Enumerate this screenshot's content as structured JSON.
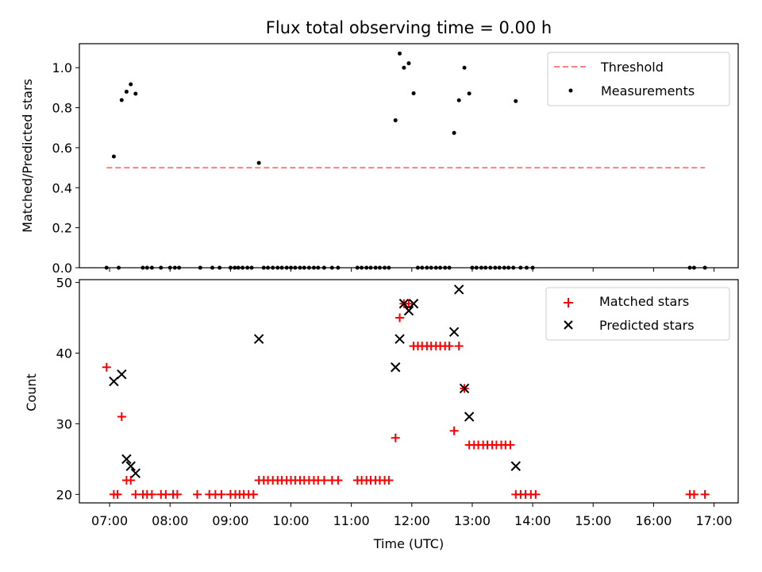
{
  "chart_data": [
    {
      "type": "scatter",
      "title": "Flux total observing time = 0.00 h",
      "xlabel": "",
      "ylabel": "Matched/Predicted stars",
      "xlim": [
        6.5,
        17.4
      ],
      "ylim": [
        0.0,
        1.12
      ],
      "yticks": [
        0.0,
        0.2,
        0.4,
        0.6,
        0.8,
        1.0
      ],
      "yticklabels": [
        "0.0",
        "0.2",
        "0.4",
        "0.6",
        "0.8",
        "1.0"
      ],
      "threshold": {
        "name": "Threshold",
        "value": 0.5,
        "x_start": 6.95,
        "x_end": 16.85,
        "color": "#ff7f7f"
      },
      "legend": [
        "Threshold",
        "Measurements"
      ],
      "legend_position": "top-right",
      "series": [
        {
          "name": "Measurements",
          "color": "#000000",
          "x": [
            6.95,
            7.07,
            7.2,
            7.28,
            7.35,
            7.43,
            9.47,
            11.73,
            11.8,
            11.87,
            11.95,
            12.03,
            12.7,
            12.78,
            12.87,
            12.95,
            13.72,
            7.15,
            7.55,
            7.62,
            7.7,
            7.85,
            8.0,
            8.08,
            8.15,
            8.5,
            8.7,
            8.82,
            9.0,
            9.07,
            9.13,
            9.2,
            9.28,
            9.35,
            9.55,
            9.62,
            9.7,
            9.78,
            9.85,
            9.93,
            10.0,
            10.07,
            10.15,
            10.22,
            10.3,
            10.38,
            10.45,
            10.55,
            10.68,
            10.78,
            11.1,
            11.17,
            11.25,
            11.32,
            11.4,
            11.47,
            11.55,
            11.62,
            12.1,
            12.17,
            12.25,
            12.32,
            12.4,
            12.47,
            12.55,
            12.62,
            13.0,
            13.07,
            13.15,
            13.22,
            13.3,
            13.38,
            13.45,
            13.53,
            13.6,
            13.68,
            13.8,
            13.9,
            14.0,
            16.6,
            16.67,
            16.85
          ],
          "y": [
            0.0,
            0.556,
            0.838,
            0.88,
            0.917,
            0.87,
            0.524,
            0.737,
            1.071,
            1.0,
            1.022,
            0.872,
            0.674,
            0.837,
            1.0,
            0.871,
            0.833,
            0,
            0,
            0,
            0,
            0,
            0,
            0,
            0,
            0,
            0,
            0,
            0,
            0,
            0,
            0,
            0,
            0,
            0,
            0,
            0,
            0,
            0,
            0,
            0,
            0,
            0,
            0,
            0,
            0,
            0,
            0,
            0,
            0,
            0,
            0,
            0,
            0,
            0,
            0,
            0,
            0,
            0,
            0,
            0,
            0,
            0,
            0,
            0,
            0,
            0,
            0,
            0,
            0,
            0,
            0,
            0,
            0,
            0,
            0,
            0,
            0,
            0,
            0,
            0,
            0
          ]
        }
      ]
    },
    {
      "type": "scatter",
      "title": "",
      "xlabel": "Time (UTC)",
      "ylabel": "Count",
      "xlim": [
        6.5,
        17.4
      ],
      "ylim": [
        18.8,
        50.4
      ],
      "xticks": [
        7,
        8,
        9,
        10,
        11,
        12,
        13,
        14,
        15,
        16,
        17
      ],
      "xticklabels": [
        "07:00",
        "08:00",
        "09:00",
        "10:00",
        "11:00",
        "12:00",
        "13:00",
        "14:00",
        "15:00",
        "16:00",
        "17:00"
      ],
      "yticks": [
        20,
        30,
        40,
        50
      ],
      "yticklabels": [
        "20",
        "30",
        "40",
        "50"
      ],
      "legend": [
        "Matched stars",
        "Predicted stars"
      ],
      "legend_position": "top-right",
      "series": [
        {
          "name": "Matched stars",
          "color": "#ff0000",
          "marker": "+",
          "x": [
            6.95,
            7.07,
            7.13,
            7.2,
            7.28,
            7.35,
            7.43,
            7.55,
            7.62,
            7.7,
            7.85,
            7.93,
            8.05,
            8.12,
            8.45,
            8.65,
            8.75,
            8.85,
            9.0,
            9.08,
            9.15,
            9.22,
            9.3,
            9.38,
            9.47,
            9.55,
            9.62,
            9.7,
            9.78,
            9.85,
            9.93,
            10.0,
            10.07,
            10.15,
            10.22,
            10.3,
            10.38,
            10.45,
            10.55,
            10.68,
            10.78,
            11.1,
            11.17,
            11.25,
            11.32,
            11.4,
            11.47,
            11.55,
            11.62,
            11.73,
            11.8,
            11.87,
            11.95,
            12.03,
            12.1,
            12.17,
            12.25,
            12.32,
            12.4,
            12.47,
            12.55,
            12.62,
            12.78,
            12.7,
            12.87,
            12.95,
            13.03,
            13.1,
            13.18,
            13.25,
            13.33,
            13.4,
            13.48,
            13.55,
            13.63,
            13.72,
            13.8,
            13.88,
            13.97,
            14.05,
            16.6,
            16.67,
            16.85
          ],
          "y": [
            38,
            20,
            20,
            31,
            22,
            22,
            20,
            20,
            20,
            20,
            20,
            20,
            20,
            20,
            20,
            20,
            20,
            20,
            20,
            20,
            20,
            20,
            20,
            20,
            22,
            22,
            22,
            22,
            22,
            22,
            22,
            22,
            22,
            22,
            22,
            22,
            22,
            22,
            22,
            22,
            22,
            22,
            22,
            22,
            22,
            22,
            22,
            22,
            22,
            28,
            45,
            47,
            47,
            41,
            41,
            41,
            41,
            41,
            41,
            41,
            41,
            41,
            41,
            29,
            35,
            27,
            27,
            27,
            27,
            27,
            27,
            27,
            27,
            27,
            27,
            20,
            20,
            20,
            20,
            20,
            20,
            20,
            20
          ]
        },
        {
          "name": "Predicted stars",
          "color": "#000000",
          "marker": "x",
          "x": [
            7.07,
            7.2,
            7.28,
            7.35,
            7.43,
            9.47,
            11.73,
            11.8,
            11.87,
            11.95,
            12.03,
            12.7,
            12.78,
            12.87,
            12.95,
            13.72
          ],
          "y": [
            36,
            37,
            25,
            24,
            23,
            42,
            38,
            42,
            47,
            46,
            47,
            43,
            49,
            35,
            31,
            24
          ]
        }
      ]
    }
  ]
}
